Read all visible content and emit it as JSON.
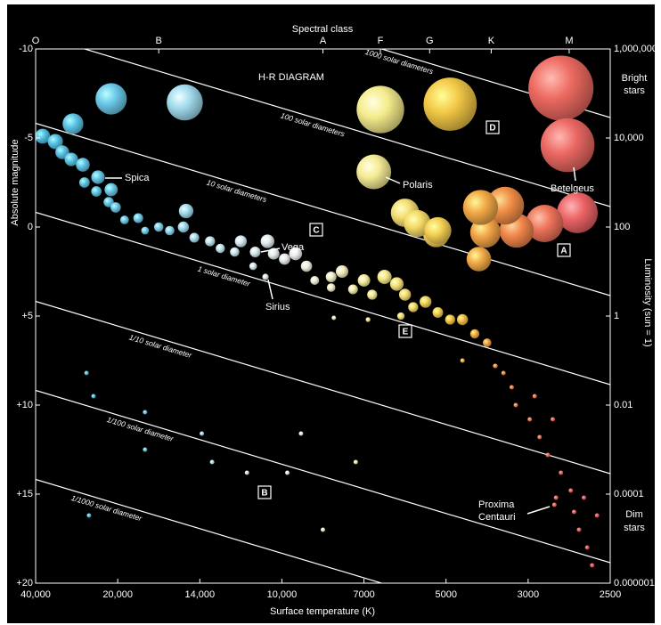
{
  "chart_data": {
    "type": "scatter",
    "title": "H-R DIAGRAM",
    "xlabel": "Surface temperature (K)",
    "ylabel": "Absolute magnitude",
    "x2label": "Spectral class",
    "y2label": "Luminosity (sun = 1)",
    "xlim": [
      40000,
      2500
    ],
    "xticks": [
      {
        "value": 40000,
        "label": "40,000"
      },
      {
        "value": 20000,
        "label": "20,000"
      },
      {
        "value": 14000,
        "label": "14,000"
      },
      {
        "value": 10000,
        "label": "10,000"
      },
      7000,
      5000,
      3000,
      2500
    ],
    "x2ticks": [
      {
        "value": 40000,
        "label": "O"
      },
      {
        "value": 17000,
        "label": "B"
      },
      {
        "value": 8500,
        "label": "A"
      },
      {
        "value": 6600,
        "label": "F"
      },
      {
        "value": 5400,
        "label": "G"
      },
      {
        "value": 3900,
        "label": "K"
      },
      {
        "value": 2750,
        "label": "M"
      }
    ],
    "ylim": [
      -10,
      20
    ],
    "yticks": [
      -10,
      -5,
      0,
      {
        "value": 5,
        "label": "+5"
      },
      {
        "value": 10,
        "label": "+10"
      },
      {
        "value": 15,
        "label": "+15"
      },
      {
        "value": 20,
        "label": "+20"
      }
    ],
    "y2scale": "log",
    "y2lim": [
      1000000,
      1e-06
    ],
    "y2ticks": [
      {
        "value": 1000000,
        "label": "1,000,000"
      },
      {
        "value": 10000,
        "label": "10,000"
      },
      100,
      1,
      0.01,
      0.0001,
      1e-06
    ],
    "x": [
      21600,
      15100,
      6600,
      4900,
      2800,
      2760,
      30900,
      6760,
      2700,
      2900,
      3280,
      3560,
      4040,
      4160,
      5240,
      38300,
      35200,
      33500,
      31300,
      28500,
      24800,
      28100,
      25200,
      21600,
      22200,
      20500,
      19500,
      18500,
      18000,
      17000,
      16200,
      15000,
      15200,
      14400,
      13500,
      13000,
      12300,
      12000,
      11300,
      10700,
      10400,
      11400,
      10800,
      9900,
      9500,
      9100,
      8800,
      8200,
      8200,
      7800,
      7400,
      7000,
      6800,
      6500,
      6200,
      6000,
      5800,
      5500,
      5200,
      4900,
      4600,
      4300,
      4000,
      4600,
      3800,
      3600,
      3400,
      3300,
      2990,
      2930,
      2880,
      2800,
      2740,
      2720,
      2690,
      2640,
      2610,
      6000,
      5700,
      5200,
      8100,
      6900,
      4200,
      6100,
      2960,
      2850,
      2830,
      2660,
      2580,
      2840,
      27600,
      25900,
      18000,
      18000,
      13900,
      13400,
      11700,
      9800,
      9300,
      7300,
      8500,
      27000
    ],
    "values": [
      -7.2,
      -7.0,
      -6.6,
      -6.9,
      -7.8,
      -4.6,
      -5.8,
      -3.1,
      -0.8,
      -0.2,
      0.2,
      -1.2,
      0.3,
      -1.1,
      0.4,
      -5.1,
      -4.8,
      -4.2,
      -3.8,
      -3.5,
      -2.8,
      -2.5,
      -2.0,
      -2.1,
      -1.4,
      -1.1,
      -0.4,
      -0.5,
      0.2,
      0,
      0.2,
      -0.9,
      0,
      0.6,
      0.8,
      1.2,
      1.4,
      0.8,
      1.4,
      0.8,
      1.5,
      2.2,
      2.8,
      1.8,
      1.5,
      2.2,
      3.0,
      2.8,
      3.4,
      2.5,
      3.5,
      3.0,
      3.8,
      2.8,
      3.2,
      3.8,
      4.5,
      4.2,
      4.8,
      5.2,
      5.2,
      6.0,
      6.5,
      7.5,
      7.8,
      8.2,
      9.0,
      10.0,
      10.8,
      11.8,
      12.8,
      13.8,
      14.8,
      16.0,
      17.0,
      18.0,
      19.0,
      -0.8,
      -0.2,
      0.2,
      5.1,
      5.2,
      1.8,
      5.0,
      9.5,
      10.8,
      15.2,
      15.2,
      16.2,
      15.6,
      8.2,
      9.5,
      10.4,
      12.5,
      11.6,
      13.2,
      13.8,
      13.8,
      11.6,
      13.2,
      17.0,
      16.2
    ],
    "radius_lines": [
      "1000 solar diameters",
      "100 solar diameters",
      "10 solar diameters",
      "1 solar diameter",
      "1/10 solar diameter",
      "1/100 solar diameter",
      "1/1000 solar diameter"
    ],
    "star_labels": [
      "Spica",
      "Vega",
      "Sirius",
      "Polaris",
      "Betelgeus",
      "Proxima",
      "Centauri"
    ],
    "region_labels": [
      "D",
      "C",
      "A",
      "E",
      "B"
    ],
    "side_labels": [
      "Bright",
      "stars",
      "Dim",
      "stars"
    ]
  }
}
